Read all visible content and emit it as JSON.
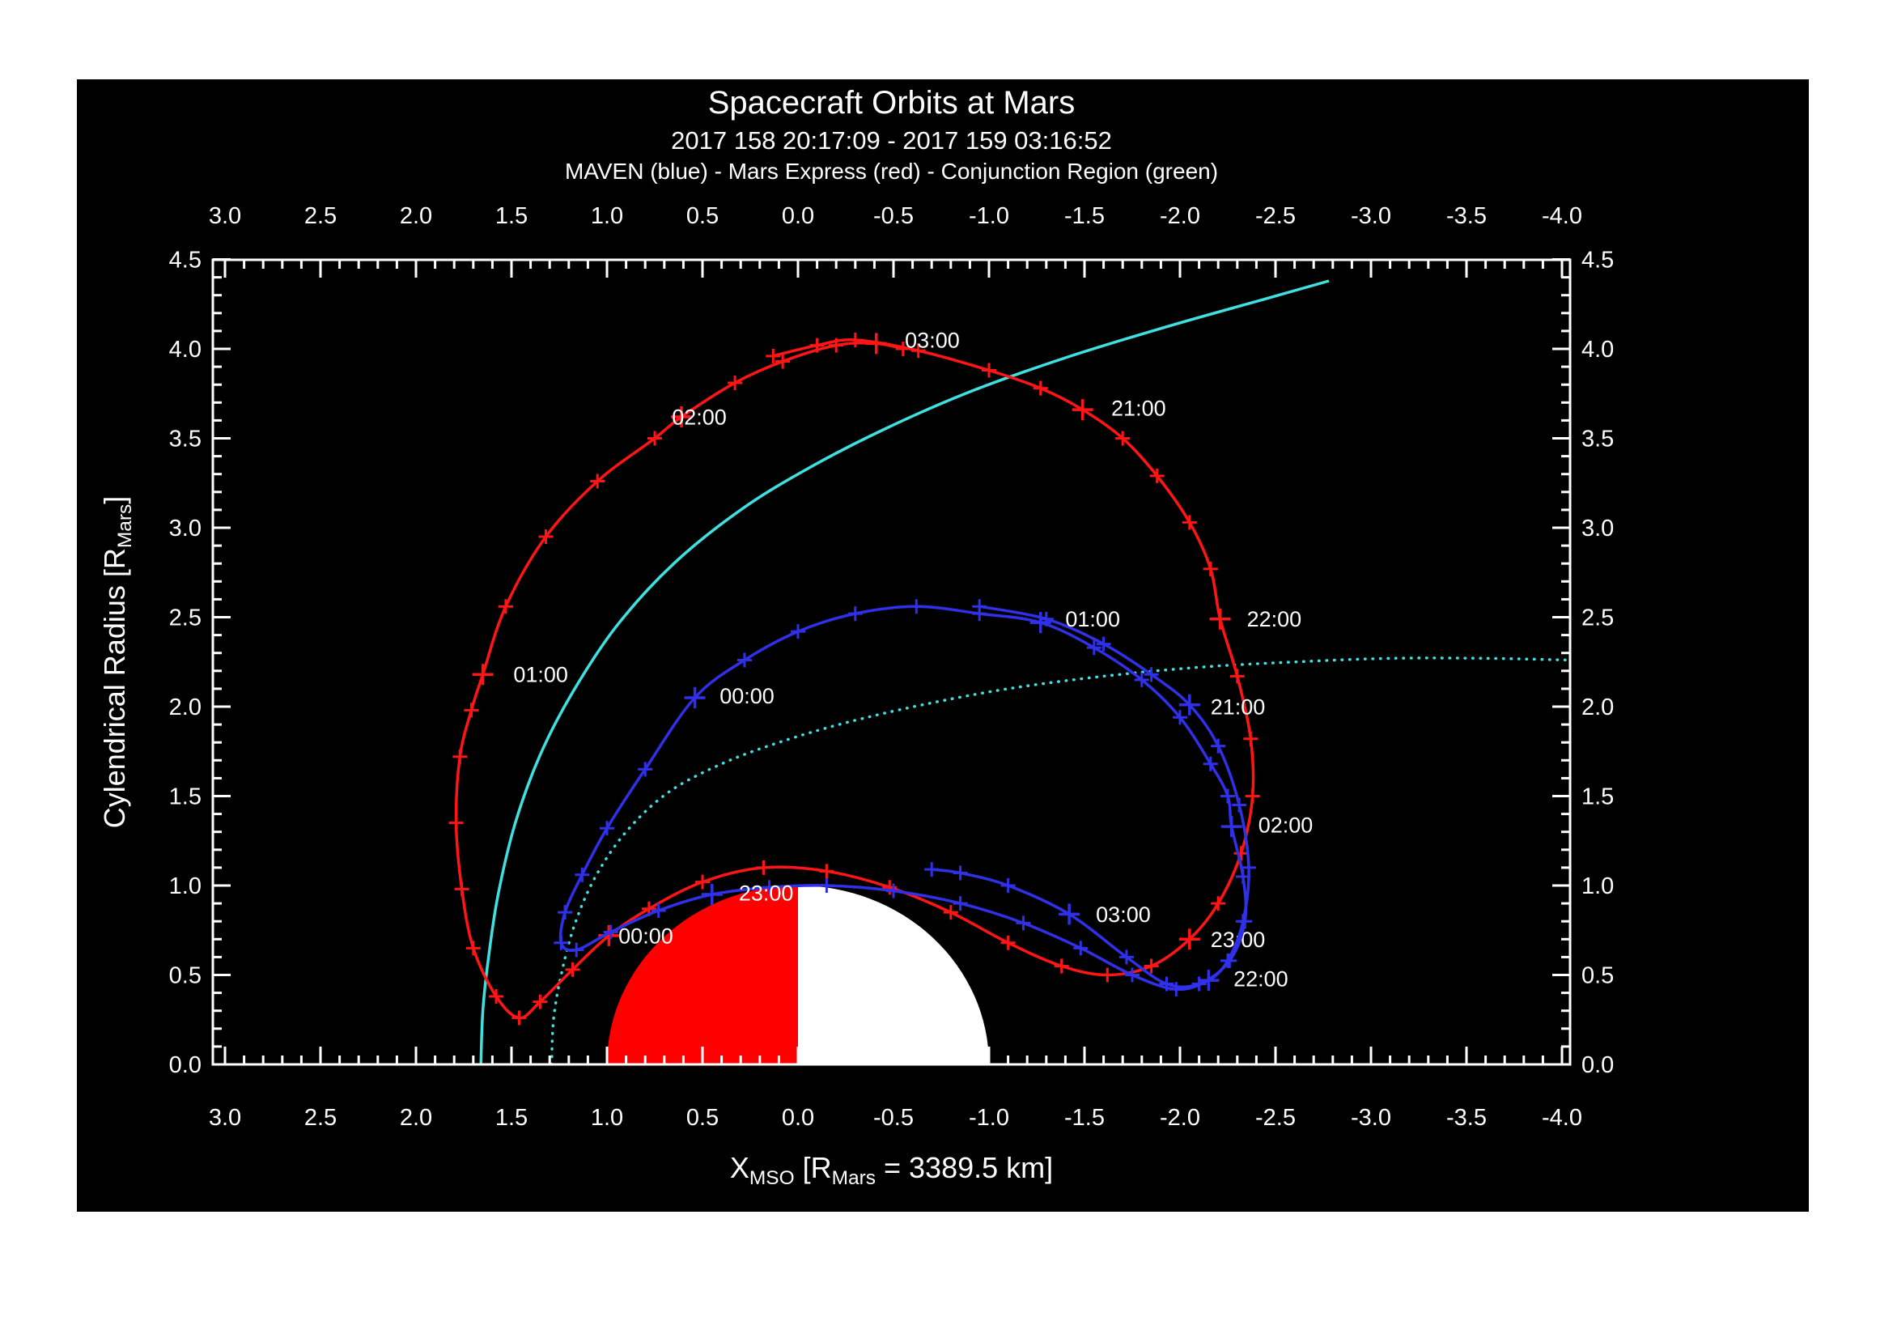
{
  "header": {
    "title": "Spacecraft Orbits at Mars",
    "subtitle": "2017 158 20:17:09 - 2017 159 03:16:52",
    "legend": "MAVEN (blue) - Mars Express (red) - Conjunction Region (green)"
  },
  "axis_titles": {
    "x": {
      "pre": "X",
      "sub1": "MSO",
      "mid": " [R",
      "sub2": "Mars",
      "post": " = 3389.5 km]"
    },
    "y": {
      "pre": "Cylendrical Radius [R",
      "sub": "Mars",
      "post": "]"
    }
  },
  "colors": {
    "maven": "#3030e8",
    "mex": "#ff1515",
    "boundary": "#40e0e0",
    "mars_day": "#ff0000",
    "mars_night": "#ffffff",
    "frame": "#ffffff",
    "background": "#000000",
    "page": "#ffffff"
  },
  "chart_data": {
    "type": "line",
    "title": "Spacecraft Orbits at Mars",
    "xlabel": "X_MSO [R_Mars = 3389.5 km]",
    "ylabel": "Cylendrical Radius [R_Mars]",
    "x_axis": {
      "range": [
        3.06,
        -4.04
      ],
      "major_step": 0.5,
      "minor_step": 0.1,
      "ticks": [
        "3.0",
        "2.5",
        "2.0",
        "1.5",
        "1.0",
        "0.5",
        "0.0",
        "-0.5",
        "-1.0",
        "-1.5",
        "-2.0",
        "-2.5",
        "-3.0",
        "-3.5",
        "-4.0"
      ]
    },
    "y_axis": {
      "range": [
        0.0,
        4.5
      ],
      "major_step": 0.5,
      "minor_step": 0.1,
      "ticks": [
        "0.0",
        "0.5",
        "1.0",
        "1.5",
        "2.0",
        "2.5",
        "3.0",
        "3.5",
        "4.0",
        "4.5"
      ]
    },
    "mars": {
      "x": 0,
      "r": 0,
      "radius": 1,
      "day_color": "mars_day",
      "night_color": "mars_night",
      "day_side": "sunward +X"
    },
    "series": [
      {
        "name": "bow-shock",
        "kind": "boundary",
        "color": "boundary",
        "style": "solid",
        "markers": false,
        "points": [
          [
            1.66,
            0.0
          ],
          [
            1.65,
            0.3
          ],
          [
            1.62,
            0.6
          ],
          [
            1.57,
            0.95
          ],
          [
            1.48,
            1.35
          ],
          [
            1.35,
            1.73
          ],
          [
            1.18,
            2.08
          ],
          [
            0.95,
            2.45
          ],
          [
            0.65,
            2.8
          ],
          [
            0.3,
            3.1
          ],
          [
            -0.05,
            3.33
          ],
          [
            -0.45,
            3.55
          ],
          [
            -0.9,
            3.76
          ],
          [
            -1.4,
            3.95
          ],
          [
            -1.95,
            4.13
          ],
          [
            -2.45,
            4.28
          ],
          [
            -2.78,
            4.38
          ]
        ]
      },
      {
        "name": "magnetopause",
        "kind": "boundary",
        "color": "boundary",
        "style": "dotted",
        "markers": false,
        "points": [
          [
            1.29,
            0.0
          ],
          [
            1.28,
            0.25
          ],
          [
            1.24,
            0.5
          ],
          [
            1.17,
            0.78
          ],
          [
            1.06,
            1.05
          ],
          [
            0.9,
            1.3
          ],
          [
            0.68,
            1.52
          ],
          [
            0.4,
            1.68
          ],
          [
            0.1,
            1.8
          ],
          [
            -0.25,
            1.91
          ],
          [
            -0.65,
            2.01
          ],
          [
            -1.1,
            2.1
          ],
          [
            -1.6,
            2.17
          ],
          [
            -2.1,
            2.22
          ],
          [
            -2.6,
            2.25
          ],
          [
            -3.1,
            2.27
          ],
          [
            -3.6,
            2.27
          ],
          [
            -4.05,
            2.26
          ]
        ]
      },
      {
        "name": "mars-express-orbit",
        "kind": "orbit",
        "color": "mex",
        "style": "solid",
        "markers": true,
        "points": [
          [
            0.13,
            3.96
          ],
          [
            -0.1,
            4.02
          ],
          [
            -0.3,
            4.05
          ],
          [
            -0.63,
            3.99
          ],
          [
            -1.0,
            3.88
          ],
          [
            -1.27,
            3.78
          ],
          [
            -1.49,
            3.66
          ],
          [
            -1.7,
            3.5
          ],
          [
            -1.88,
            3.29
          ],
          [
            -2.05,
            3.03
          ],
          [
            -2.16,
            2.77
          ],
          [
            -2.21,
            2.49
          ],
          [
            -2.3,
            2.17
          ],
          [
            -2.37,
            1.82
          ],
          [
            -2.38,
            1.5
          ],
          [
            -2.32,
            1.18
          ],
          [
            -2.2,
            0.9
          ],
          [
            -2.05,
            0.7
          ],
          [
            -1.85,
            0.55
          ],
          [
            -1.62,
            0.5
          ],
          [
            -1.38,
            0.55
          ],
          [
            -1.1,
            0.68
          ],
          [
            -0.8,
            0.85
          ],
          [
            -0.48,
            0.99
          ],
          [
            -0.15,
            1.08
          ],
          [
            0.18,
            1.1
          ],
          [
            0.5,
            1.02
          ],
          [
            0.78,
            0.87
          ],
          [
            0.99,
            0.72
          ],
          [
            1.18,
            0.53
          ],
          [
            1.35,
            0.35
          ],
          [
            1.46,
            0.26
          ],
          [
            1.58,
            0.38
          ],
          [
            1.7,
            0.65
          ],
          [
            1.76,
            0.98
          ],
          [
            1.79,
            1.35
          ],
          [
            1.77,
            1.72
          ],
          [
            1.71,
            1.98
          ],
          [
            1.65,
            2.18
          ],
          [
            1.53,
            2.56
          ],
          [
            1.32,
            2.95
          ],
          [
            1.05,
            3.26
          ],
          [
            0.75,
            3.5
          ],
          [
            0.61,
            3.62
          ],
          [
            0.33,
            3.81
          ],
          [
            0.08,
            3.93
          ],
          [
            -0.2,
            4.02
          ],
          [
            -0.41,
            4.03
          ],
          [
            -0.55,
            4.0
          ]
        ],
        "time_labels": [
          {
            "text": "21:00",
            "x": -1.64,
            "r": 3.67,
            "ax": -1.49,
            "ar": 3.66
          },
          {
            "text": "22:00",
            "x": -2.35,
            "r": 2.49,
            "ax": -2.21,
            "ar": 2.49
          },
          {
            "text": "23:00",
            "x": -2.16,
            "r": 0.7,
            "ax": -2.05,
            "ar": 0.7
          },
          {
            "text": "00:00",
            "x": 0.94,
            "r": 0.72,
            "ax": 0.99,
            "ar": 0.72
          },
          {
            "text": "01:00",
            "x": 1.49,
            "r": 2.18,
            "ax": 1.65,
            "ar": 2.18
          },
          {
            "text": "02:00",
            "x": 0.66,
            "r": 3.62,
            "ax": 0.61,
            "ar": 3.62
          },
          {
            "text": "03:00",
            "x": -0.56,
            "r": 4.05,
            "ax": -0.41,
            "ar": 4.03
          }
        ]
      },
      {
        "name": "maven-orbit",
        "kind": "orbit",
        "color": "maven",
        "style": "solid",
        "markers": true,
        "points": [
          [
            -0.95,
            2.56
          ],
          [
            -1.3,
            2.49
          ],
          [
            -1.6,
            2.35
          ],
          [
            -1.85,
            2.18
          ],
          [
            -2.05,
            2.01
          ],
          [
            -2.2,
            1.78
          ],
          [
            -2.31,
            1.45
          ],
          [
            -2.36,
            1.1
          ],
          [
            -2.33,
            0.8
          ],
          [
            -2.25,
            0.58
          ],
          [
            -2.15,
            0.47
          ],
          [
            -1.98,
            0.42
          ],
          [
            -1.75,
            0.5
          ],
          [
            -1.48,
            0.65
          ],
          [
            -1.18,
            0.79
          ],
          [
            -0.85,
            0.9
          ],
          [
            -0.5,
            0.97
          ],
          [
            -0.15,
            1.0
          ],
          [
            0.15,
            0.99
          ],
          [
            0.45,
            0.95
          ],
          [
            0.73,
            0.86
          ],
          [
            0.98,
            0.74
          ],
          [
            1.16,
            0.64
          ],
          [
            1.24,
            0.68
          ],
          [
            1.22,
            0.85
          ],
          [
            1.13,
            1.06
          ],
          [
            1.0,
            1.32
          ],
          [
            0.8,
            1.65
          ],
          [
            0.54,
            2.05
          ],
          [
            0.28,
            2.26
          ],
          [
            0.0,
            2.42
          ],
          [
            -0.3,
            2.52
          ],
          [
            -0.62,
            2.56
          ],
          [
            -0.95,
            2.52
          ],
          [
            -1.27,
            2.47
          ],
          [
            -1.55,
            2.33
          ],
          [
            -1.8,
            2.15
          ],
          [
            -2.0,
            1.94
          ],
          [
            -2.16,
            1.68
          ],
          [
            -2.25,
            1.5
          ],
          [
            -2.27,
            1.33
          ],
          [
            -2.33,
            1.05
          ],
          [
            -2.34,
            0.8
          ],
          [
            -2.26,
            0.58
          ],
          [
            -2.1,
            0.45
          ],
          [
            -1.93,
            0.45
          ],
          [
            -1.72,
            0.6
          ],
          [
            -1.42,
            0.84
          ],
          [
            -1.1,
            1.0
          ],
          [
            -0.85,
            1.07
          ],
          [
            -0.7,
            1.09
          ]
        ],
        "time_labels": [
          {
            "text": "21:00",
            "x": -2.16,
            "r": 2.0,
            "ax": -2.05,
            "ar": 2.01
          },
          {
            "text": "22:00",
            "x": -2.28,
            "r": 0.48,
            "ax": -2.15,
            "ar": 0.47
          },
          {
            "text": "23:00",
            "x": 0.31,
            "r": 0.96,
            "ax": 0.45,
            "ar": 0.95
          },
          {
            "text": "00:00",
            "x": 0.41,
            "r": 2.06,
            "ax": 0.54,
            "ar": 2.05
          },
          {
            "text": "01:00",
            "x": -1.4,
            "r": 2.49,
            "ax": -1.27,
            "ar": 2.47
          },
          {
            "text": "02:00",
            "x": -2.41,
            "r": 1.34,
            "ax": -2.27,
            "ar": 1.33
          },
          {
            "text": "03:00",
            "x": -1.56,
            "r": 0.84,
            "ax": -1.42,
            "ar": 0.84
          }
        ]
      }
    ]
  }
}
